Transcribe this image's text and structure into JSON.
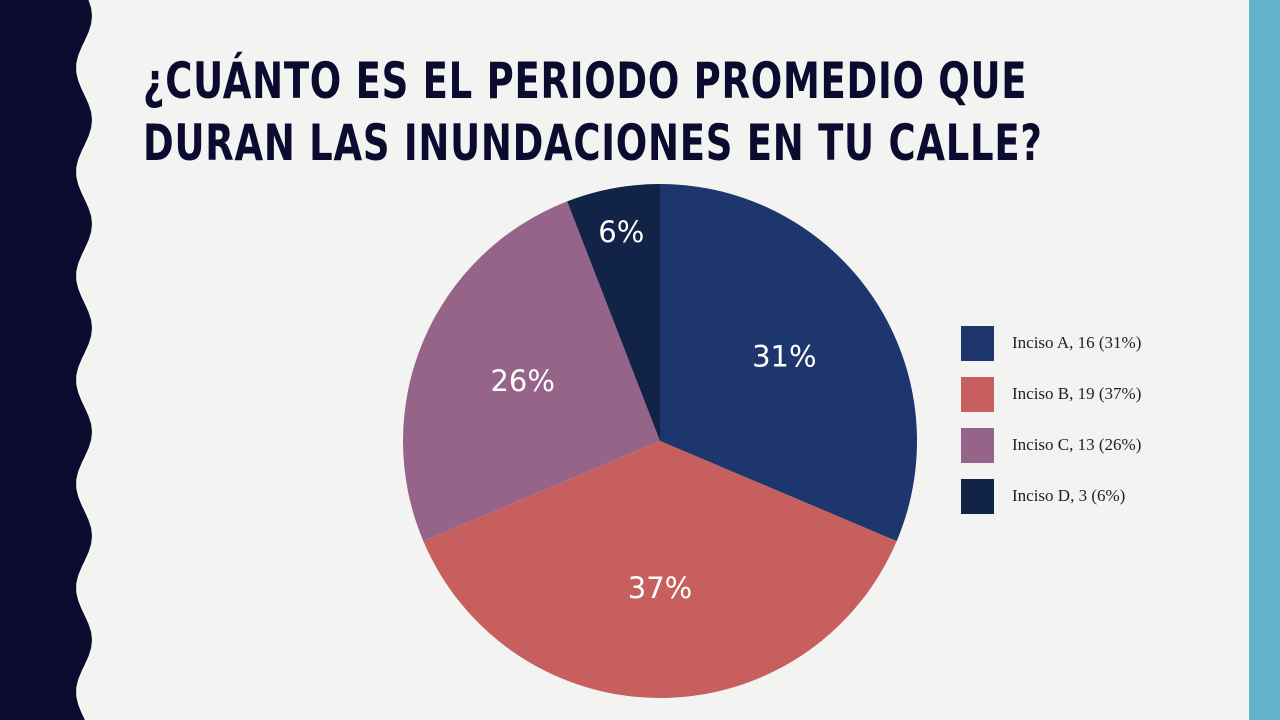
{
  "slide": {
    "title_line1": "¿Cuánto es el periodo promedio que",
    "title_line2": "duran las inundaciones en tu calle?"
  },
  "colors": {
    "background": "#f3f3f1",
    "left_band": "#0b0a2f",
    "right_band": "#64b2c9",
    "title_text": "#0b0a2f"
  },
  "chart_data": {
    "type": "pie",
    "title": "",
    "legend_position": "right",
    "start_angle_deg": 0,
    "direction": "clockwise",
    "slices": [
      {
        "label": "Inciso A",
        "value": 16,
        "percent_label": "31%",
        "legend_label": "Inciso A, 16 (31%)",
        "color": "#1e366e"
      },
      {
        "label": "Inciso B",
        "value": 19,
        "percent_label": "37%",
        "legend_label": "Inciso B, 19 (37%)",
        "color": "#c75f5e"
      },
      {
        "label": "Inciso C",
        "value": 13,
        "percent_label": "26%",
        "legend_label": "Inciso C, 13 (26%)",
        "color": "#966389"
      },
      {
        "label": "Inciso D",
        "value": 3,
        "percent_label": "6%",
        "legend_label": "Inciso D, 3 (6%)",
        "color": "#122348"
      }
    ]
  }
}
